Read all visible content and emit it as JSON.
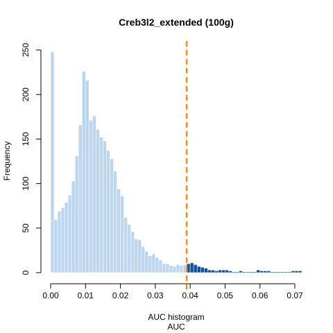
{
  "chart_data": {
    "type": "bar",
    "title": "Creb3l2_extended (100g)",
    "xlabel_line1": "AUC histogram",
    "xlabel_line2": "AUC",
    "ylabel": "Frequency",
    "xlim": [
      0.0,
      0.072
    ],
    "ylim": [
      0,
      250
    ],
    "x_ticks": [
      0.0,
      0.01,
      0.02,
      0.03,
      0.04,
      0.05,
      0.06,
      0.07
    ],
    "x_tick_labels": [
      "0.00",
      "0.01",
      "0.02",
      "0.03",
      "0.04",
      "0.05",
      "0.06",
      "0.07"
    ],
    "y_ticks": [
      0,
      50,
      100,
      150,
      200,
      250
    ],
    "y_tick_labels": [
      "0",
      "50",
      "100",
      "150",
      "200",
      "250"
    ],
    "bin_start": 0.0,
    "bin_width": 0.001,
    "threshold": 0.039,
    "values": [
      248,
      60,
      69,
      73,
      79,
      87,
      103,
      131,
      166,
      226,
      216,
      171,
      176,
      161,
      152,
      148,
      137,
      128,
      114,
      94,
      86,
      62,
      54,
      46,
      38,
      37,
      29,
      24,
      19,
      21,
      17,
      14,
      10,
      10,
      8,
      7,
      9,
      8,
      9,
      10,
      11,
      9,
      7,
      6,
      5,
      3,
      3,
      2,
      3,
      3,
      3,
      2,
      1,
      1,
      2,
      1,
      1,
      1,
      1,
      3,
      2,
      2,
      2,
      1,
      1,
      1,
      1,
      1,
      1,
      2,
      2,
      2
    ],
    "colors": {
      "below_threshold": "#bcd6f2",
      "above_threshold": "#0b4f9e",
      "threshold_line": "#f58b14",
      "bar_border": "#ffffff"
    }
  }
}
